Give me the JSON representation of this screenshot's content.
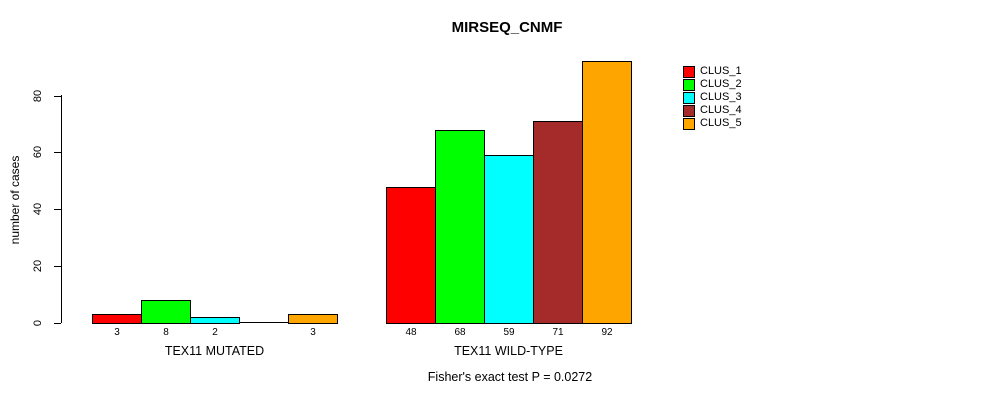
{
  "chart_data": {
    "type": "bar",
    "title": "MIRSEQ_CNMF",
    "ylabel": "number of cases",
    "ylim": [
      0,
      80
    ],
    "yticks": [
      "0",
      "20",
      "40",
      "60",
      "80"
    ],
    "grid": false,
    "legend_position": "right-outside-bars",
    "categories": [
      "TEX11 MUTATED",
      "TEX11 WILD-TYPE"
    ],
    "series": [
      {
        "name": "CLUS_1",
        "color": "#FF0000",
        "values": [
          3,
          48
        ]
      },
      {
        "name": "CLUS_2",
        "color": "#00FF00",
        "values": [
          8,
          68
        ]
      },
      {
        "name": "CLUS_3",
        "color": "#00FFFF",
        "values": [
          2,
          59
        ]
      },
      {
        "name": "CLUS_4",
        "color": "#A52A2A",
        "values": [
          0,
          71
        ]
      },
      {
        "name": "CLUS_5",
        "color": "#FFA500",
        "values": [
          3,
          92
        ]
      }
    ],
    "bar_value_labels": [
      [
        "3",
        "8",
        "2",
        "",
        "3"
      ],
      [
        "48",
        "68",
        "59",
        "71",
        "92"
      ]
    ],
    "annotation": "Fisher's exact test P = 0.0272"
  }
}
